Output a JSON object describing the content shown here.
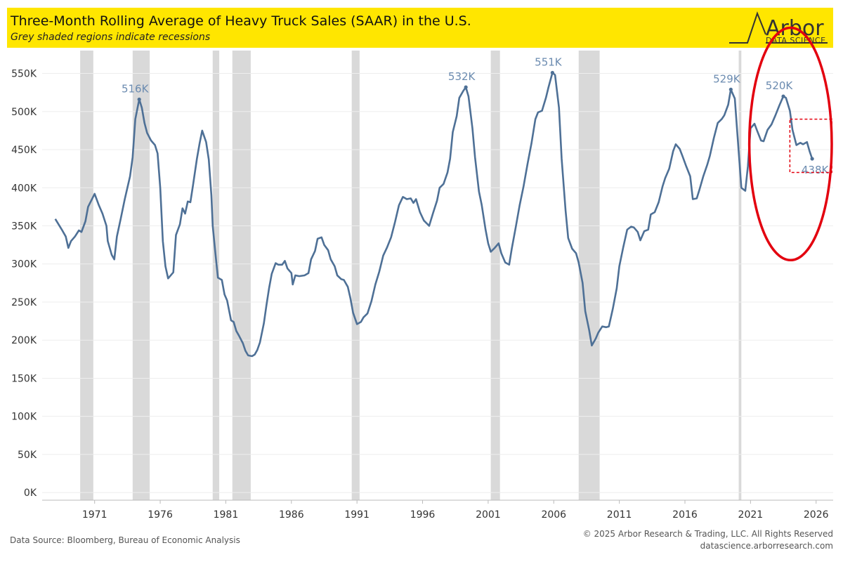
{
  "header": {
    "title": "Three-Month Rolling Average of Heavy Truck Sales (SAAR) in the U.S.",
    "subtitle": "Grey shaded regions indicate recessions"
  },
  "logo": {
    "name": "Arbor",
    "sub": "DATA SCIENCE"
  },
  "footer": {
    "source": "Data Source: Bloomberg, Bureau of Economic Analysis",
    "copyright": "© 2025 Arbor Research & Trading, LLC. All Rights Reserved",
    "website": "datascience.arborresearch.com"
  },
  "colors": {
    "line": "#4e7096",
    "label": "#6b8bb0",
    "recession": "#d9d9d9",
    "header_bg": "#ffe600",
    "highlight": "#e3000f",
    "gridline": "#eeeeee",
    "tick_text": "#333333"
  },
  "chart_data": {
    "type": "line",
    "title": "Three-Month Rolling Average of Heavy Truck Sales (SAAR) in the U.S.",
    "subtitle": "Grey shaded regions indicate recessions",
    "xlim": [
      1967.0,
      2027.3
    ],
    "ylim": [
      -10000,
      580000
    ],
    "yticks": [
      0,
      50000,
      100000,
      150000,
      200000,
      250000,
      300000,
      350000,
      400000,
      450000,
      500000,
      550000
    ],
    "ytick_labels": [
      "0K",
      "50K",
      "100K",
      "150K",
      "200K",
      "250K",
      "300K",
      "350K",
      "400K",
      "450K",
      "500K",
      "550K"
    ],
    "xticks": [
      1971,
      1976,
      1981,
      1986,
      1991,
      1996,
      2001,
      2006,
      2011,
      2016,
      2021,
      2026
    ],
    "xtick_labels": [
      "1971",
      "1976",
      "1981",
      "1986",
      "1991",
      "1996",
      "2001",
      "2006",
      "2011",
      "2016",
      "2021",
      "2026"
    ],
    "grid": true,
    "recessions": [
      [
        1969.9,
        1970.9
      ],
      [
        1973.9,
        1975.2
      ],
      [
        1980.0,
        1980.5
      ],
      [
        1981.5,
        1982.9
      ],
      [
        1990.6,
        1991.2
      ],
      [
        2001.2,
        2001.9
      ],
      [
        2007.9,
        2009.5
      ],
      [
        2020.1,
        2020.3
      ]
    ],
    "series": [
      {
        "points": [
          [
            1968.0,
            359000
          ],
          [
            1968.5,
            345000
          ],
          [
            1968.8,
            336000
          ],
          [
            1969.0,
            321000
          ],
          [
            1969.2,
            330000
          ],
          [
            1969.5,
            336000
          ],
          [
            1969.8,
            344000
          ],
          [
            1970.0,
            342000
          ],
          [
            1970.3,
            356000
          ],
          [
            1970.5,
            375000
          ],
          [
            1971.0,
            392000
          ],
          [
            1971.3,
            378000
          ],
          [
            1971.6,
            366000
          ],
          [
            1971.9,
            350000
          ],
          [
            1972.0,
            330000
          ],
          [
            1972.3,
            312000
          ],
          [
            1972.5,
            306000
          ],
          [
            1972.7,
            336000
          ],
          [
            1973.0,
            360000
          ],
          [
            1973.3,
            385000
          ],
          [
            1973.7,
            415000
          ],
          [
            1973.9,
            440000
          ],
          [
            1974.1,
            490000
          ],
          [
            1974.4,
            516000
          ],
          [
            1974.6,
            505000
          ],
          [
            1974.8,
            485000
          ],
          [
            1975.0,
            472000
          ],
          [
            1975.3,
            462000
          ],
          [
            1975.6,
            456000
          ],
          [
            1975.8,
            445000
          ],
          [
            1976.0,
            400000
          ],
          [
            1976.2,
            330000
          ],
          [
            1976.4,
            297000
          ],
          [
            1976.6,
            281000
          ],
          [
            1977.0,
            289000
          ],
          [
            1977.2,
            338000
          ],
          [
            1977.5,
            352000
          ],
          [
            1977.7,
            373000
          ],
          [
            1977.9,
            366000
          ],
          [
            1978.1,
            382000
          ],
          [
            1978.3,
            381000
          ],
          [
            1978.5,
            403000
          ],
          [
            1978.8,
            438000
          ],
          [
            1979.0,
            458000
          ],
          [
            1979.2,
            475000
          ],
          [
            1979.5,
            460000
          ],
          [
            1979.7,
            437000
          ],
          [
            1979.9,
            390000
          ],
          [
            1980.0,
            350000
          ],
          [
            1980.2,
            315000
          ],
          [
            1980.4,
            282000
          ],
          [
            1980.7,
            279000
          ],
          [
            1980.9,
            260000
          ],
          [
            1981.1,
            252000
          ],
          [
            1981.4,
            226000
          ],
          [
            1981.6,
            224000
          ],
          [
            1981.8,
            212000
          ],
          [
            1982.0,
            206000
          ],
          [
            1982.3,
            196000
          ],
          [
            1982.5,
            186000
          ],
          [
            1982.7,
            180000
          ],
          [
            1983.0,
            179000
          ],
          [
            1983.2,
            181000
          ],
          [
            1983.4,
            187000
          ],
          [
            1983.6,
            197000
          ],
          [
            1983.9,
            222000
          ],
          [
            1984.1,
            246000
          ],
          [
            1984.3,
            268000
          ],
          [
            1984.5,
            287000
          ],
          [
            1984.8,
            301000
          ],
          [
            1985.0,
            299000
          ],
          [
            1985.3,
            299000
          ],
          [
            1985.5,
            304000
          ],
          [
            1985.7,
            294000
          ],
          [
            1986.0,
            288000
          ],
          [
            1986.1,
            273000
          ],
          [
            1986.3,
            285000
          ],
          [
            1986.6,
            284000
          ],
          [
            1987.0,
            285000
          ],
          [
            1987.3,
            288000
          ],
          [
            1987.5,
            306000
          ],
          [
            1987.8,
            317000
          ],
          [
            1988.0,
            333000
          ],
          [
            1988.3,
            335000
          ],
          [
            1988.5,
            325000
          ],
          [
            1988.8,
            318000
          ],
          [
            1989.0,
            306000
          ],
          [
            1989.3,
            297000
          ],
          [
            1989.5,
            285000
          ],
          [
            1989.8,
            280000
          ],
          [
            1990.0,
            279000
          ],
          [
            1990.3,
            270000
          ],
          [
            1990.5,
            255000
          ],
          [
            1990.7,
            236000
          ],
          [
            1991.0,
            221000
          ],
          [
            1991.3,
            224000
          ],
          [
            1991.5,
            230000
          ],
          [
            1991.8,
            235000
          ],
          [
            1992.1,
            251000
          ],
          [
            1992.4,
            273000
          ],
          [
            1992.7,
            290000
          ],
          [
            1993.0,
            311000
          ],
          [
            1993.3,
            322000
          ],
          [
            1993.6,
            335000
          ],
          [
            1993.9,
            355000
          ],
          [
            1994.2,
            377000
          ],
          [
            1994.5,
            388000
          ],
          [
            1994.8,
            385000
          ],
          [
            1995.1,
            386000
          ],
          [
            1995.3,
            380000
          ],
          [
            1995.5,
            385000
          ],
          [
            1995.8,
            368000
          ],
          [
            1996.1,
            357000
          ],
          [
            1996.5,
            350000
          ],
          [
            1996.8,
            367000
          ],
          [
            1997.1,
            383000
          ],
          [
            1997.3,
            400000
          ],
          [
            1997.6,
            405000
          ],
          [
            1997.9,
            420000
          ],
          [
            1998.1,
            438000
          ],
          [
            1998.3,
            473000
          ],
          [
            1998.6,
            494000
          ],
          [
            1998.8,
            518000
          ],
          [
            1999.1,
            527000
          ],
          [
            1999.3,
            532000
          ],
          [
            1999.5,
            520000
          ],
          [
            1999.8,
            478000
          ],
          [
            2000.0,
            440000
          ],
          [
            2000.3,
            395000
          ],
          [
            2000.5,
            378000
          ],
          [
            2000.8,
            345000
          ],
          [
            2001.0,
            327000
          ],
          [
            2001.2,
            316000
          ],
          [
            2001.5,
            321000
          ],
          [
            2001.8,
            327000
          ],
          [
            2002.0,
            314000
          ],
          [
            2002.3,
            302000
          ],
          [
            2002.6,
            299000
          ],
          [
            2002.8,
            320000
          ],
          [
            2003.1,
            348000
          ],
          [
            2003.4,
            377000
          ],
          [
            2003.7,
            402000
          ],
          [
            2004.0,
            431000
          ],
          [
            2004.3,
            458000
          ],
          [
            2004.6,
            490000
          ],
          [
            2004.8,
            499000
          ],
          [
            2005.1,
            501000
          ],
          [
            2005.4,
            518000
          ],
          [
            2005.6,
            532000
          ],
          [
            2005.9,
            551000
          ],
          [
            2006.1,
            548000
          ],
          [
            2006.4,
            505000
          ],
          [
            2006.6,
            438000
          ],
          [
            2006.9,
            370000
          ],
          [
            2007.1,
            334000
          ],
          [
            2007.4,
            320000
          ],
          [
            2007.7,
            314000
          ],
          [
            2007.9,
            302000
          ],
          [
            2008.2,
            275000
          ],
          [
            2008.4,
            238000
          ],
          [
            2008.7,
            213000
          ],
          [
            2008.9,
            193000
          ],
          [
            2009.2,
            202000
          ],
          [
            2009.4,
            210000
          ],
          [
            2009.7,
            218000
          ],
          [
            2010.0,
            217000
          ],
          [
            2010.2,
            218000
          ],
          [
            2010.5,
            241000
          ],
          [
            2010.8,
            268000
          ],
          [
            2011.0,
            297000
          ],
          [
            2011.3,
            322000
          ],
          [
            2011.6,
            345000
          ],
          [
            2011.9,
            349000
          ],
          [
            2012.1,
            348000
          ],
          [
            2012.4,
            342000
          ],
          [
            2012.6,
            331000
          ],
          [
            2012.9,
            343000
          ],
          [
            2013.2,
            345000
          ],
          [
            2013.4,
            365000
          ],
          [
            2013.7,
            368000
          ],
          [
            2014.0,
            381000
          ],
          [
            2014.3,
            402000
          ],
          [
            2014.5,
            413000
          ],
          [
            2014.8,
            425000
          ],
          [
            2015.1,
            448000
          ],
          [
            2015.3,
            457000
          ],
          [
            2015.6,
            451000
          ],
          [
            2015.8,
            442000
          ],
          [
            2016.1,
            428000
          ],
          [
            2016.4,
            415000
          ],
          [
            2016.6,
            385000
          ],
          [
            2016.9,
            386000
          ],
          [
            2017.1,
            397000
          ],
          [
            2017.4,
            415000
          ],
          [
            2017.7,
            430000
          ],
          [
            2017.9,
            442000
          ],
          [
            2018.2,
            465000
          ],
          [
            2018.5,
            485000
          ],
          [
            2018.8,
            490000
          ],
          [
            2019.0,
            495000
          ],
          [
            2019.3,
            509000
          ],
          [
            2019.5,
            529000
          ],
          [
            2019.8,
            517000
          ],
          [
            2020.0,
            470000
          ],
          [
            2020.3,
            400000
          ],
          [
            2020.6,
            396000
          ],
          [
            2020.8,
            428000
          ],
          [
            2021.0,
            478000
          ],
          [
            2021.3,
            484000
          ],
          [
            2021.5,
            475000
          ],
          [
            2021.8,
            462000
          ],
          [
            2022.0,
            461000
          ],
          [
            2022.3,
            476000
          ],
          [
            2022.6,
            483000
          ],
          [
            2022.9,
            495000
          ],
          [
            2023.2,
            508000
          ],
          [
            2023.5,
            520000
          ],
          [
            2023.7,
            518000
          ],
          [
            2024.0,
            501000
          ],
          [
            2024.2,
            476000
          ],
          [
            2024.5,
            456000
          ],
          [
            2024.8,
            459000
          ],
          [
            2025.0,
            457000
          ],
          [
            2025.3,
            460000
          ],
          [
            2025.5,
            448000
          ],
          [
            2025.7,
            438000
          ]
        ]
      }
    ],
    "annotations": [
      {
        "text": "516K",
        "x": 1974.4,
        "y": 516000
      },
      {
        "text": "532K",
        "x": 1999.3,
        "y": 532000
      },
      {
        "text": "551K",
        "x": 2005.9,
        "y": 551000
      },
      {
        "text": "529K",
        "x": 2019.5,
        "y": 529000
      },
      {
        "text": "520K",
        "x": 2023.5,
        "y": 520000
      },
      {
        "text": "438K",
        "x": 2025.7,
        "y": 438000
      }
    ],
    "highlight_ellipse": {
      "x": [
        2020.8,
        2027.3
      ],
      "y": [
        305000,
        610000
      ]
    },
    "highlight_box": {
      "x": [
        2024.0,
        2027.2
      ],
      "y": [
        420000,
        490000
      ]
    }
  }
}
